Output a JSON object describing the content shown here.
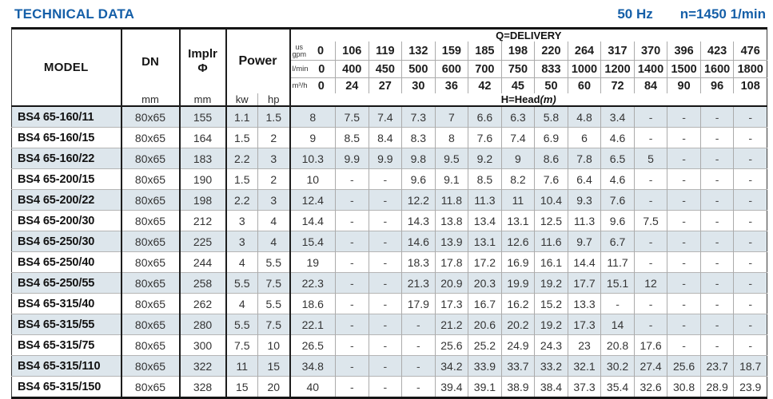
{
  "title": "TECHNICAL DATA",
  "frequency": "50 Hz",
  "speed": "n=1450 1/min",
  "colors": {
    "accent_blue": "#155fa8",
    "row_shade": "#dde6ec",
    "grid_thin": "#ababab",
    "grid_dark": "#1d1d1d"
  },
  "table": {
    "col_model": "MODEL",
    "col_dn": "DN",
    "col_implr_line1": "Implr",
    "col_implr_line2": "Φ",
    "col_power": "Power",
    "unit_mm": "mm",
    "unit_kw": "kw",
    "unit_hp": "hp",
    "q_delivery_label": "Q=DELIVERY",
    "h_head_label": "H=Head",
    "h_head_unit": "(m)",
    "flow_units": {
      "gpm_top": "us",
      "gpm_bottom": "gpm",
      "lmin": "l/min",
      "m3h": "m³/h"
    },
    "flow_values": {
      "gpm": [
        "0",
        "106",
        "119",
        "132",
        "159",
        "185",
        "198",
        "220",
        "264",
        "317",
        "370",
        "396",
        "423",
        "476"
      ],
      "lmin": [
        "0",
        "400",
        "450",
        "500",
        "600",
        "700",
        "750",
        "833",
        "1000",
        "1200",
        "1400",
        "1500",
        "1600",
        "1800"
      ],
      "m3h": [
        "0",
        "24",
        "27",
        "30",
        "36",
        "42",
        "45",
        "50",
        "60",
        "72",
        "84",
        "90",
        "96",
        "108"
      ]
    },
    "rows": [
      {
        "model": "BS4 65-160/11",
        "dn": "80x65",
        "implr": "155",
        "kw": "1.1",
        "hp": "1.5",
        "heads": [
          "8",
          "7.5",
          "7.4",
          "7.3",
          "7",
          "6.6",
          "6.3",
          "5.8",
          "4.8",
          "3.4",
          "-",
          "-",
          "-",
          "-"
        ]
      },
      {
        "model": "BS4 65-160/15",
        "dn": "80x65",
        "implr": "164",
        "kw": "1.5",
        "hp": "2",
        "heads": [
          "9",
          "8.5",
          "8.4",
          "8.3",
          "8",
          "7.6",
          "7.4",
          "6.9",
          "6",
          "4.6",
          "-",
          "-",
          "-",
          "-"
        ]
      },
      {
        "model": "BS4 65-160/22",
        "dn": "80x65",
        "implr": "183",
        "kw": "2.2",
        "hp": "3",
        "heads": [
          "10.3",
          "9.9",
          "9.9",
          "9.8",
          "9.5",
          "9.2",
          "9",
          "8.6",
          "7.8",
          "6.5",
          "5",
          "-",
          "-",
          "-"
        ]
      },
      {
        "model": "BS4 65-200/15",
        "dn": "80x65",
        "implr": "190",
        "kw": "1.5",
        "hp": "2",
        "heads": [
          "10",
          "-",
          "-",
          "9.6",
          "9.1",
          "8.5",
          "8.2",
          "7.6",
          "6.4",
          "4.6",
          "-",
          "-",
          "-",
          "-"
        ]
      },
      {
        "model": "BS4 65-200/22",
        "dn": "80x65",
        "implr": "198",
        "kw": "2.2",
        "hp": "3",
        "heads": [
          "12.4",
          "-",
          "-",
          "12.2",
          "11.8",
          "11.3",
          "11",
          "10.4",
          "9.3",
          "7.6",
          "-",
          "-",
          "-",
          "-"
        ]
      },
      {
        "model": "BS4 65-200/30",
        "dn": "80x65",
        "implr": "212",
        "kw": "3",
        "hp": "4",
        "heads": [
          "14.4",
          "-",
          "-",
          "14.3",
          "13.8",
          "13.4",
          "13.1",
          "12.5",
          "11.3",
          "9.6",
          "7.5",
          "-",
          "-",
          "-"
        ]
      },
      {
        "model": "BS4 65-250/30",
        "dn": "80x65",
        "implr": "225",
        "kw": "3",
        "hp": "4",
        "heads": [
          "15.4",
          "-",
          "-",
          "14.6",
          "13.9",
          "13.1",
          "12.6",
          "11.6",
          "9.7",
          "6.7",
          "-",
          "-",
          "-",
          "-"
        ]
      },
      {
        "model": "BS4 65-250/40",
        "dn": "80x65",
        "implr": "244",
        "kw": "4",
        "hp": "5.5",
        "heads": [
          "19",
          "-",
          "-",
          "18.3",
          "17.8",
          "17.2",
          "16.9",
          "16.1",
          "14.4",
          "11.7",
          "-",
          "-",
          "-",
          "-"
        ]
      },
      {
        "model": "BS4 65-250/55",
        "dn": "80x65",
        "implr": "258",
        "kw": "5.5",
        "hp": "7.5",
        "heads": [
          "22.3",
          "-",
          "-",
          "21.3",
          "20.9",
          "20.3",
          "19.9",
          "19.2",
          "17.7",
          "15.1",
          "12",
          "-",
          "-",
          "-"
        ]
      },
      {
        "model": "BS4 65-315/40",
        "dn": "80x65",
        "implr": "262",
        "kw": "4",
        "hp": "5.5",
        "heads": [
          "18.6",
          "-",
          "-",
          "17.9",
          "17.3",
          "16.7",
          "16.2",
          "15.2",
          "13.3",
          "-",
          "-",
          "-",
          "-",
          "-"
        ]
      },
      {
        "model": "BS4 65-315/55",
        "dn": "80x65",
        "implr": "280",
        "kw": "5.5",
        "hp": "7.5",
        "heads": [
          "22.1",
          "-",
          "-",
          "-",
          "21.2",
          "20.6",
          "20.2",
          "19.2",
          "17.3",
          "14",
          "-",
          "-",
          "-",
          "-"
        ]
      },
      {
        "model": "BS4 65-315/75",
        "dn": "80x65",
        "implr": "300",
        "kw": "7.5",
        "hp": "10",
        "heads": [
          "26.5",
          "-",
          "-",
          "-",
          "25.6",
          "25.2",
          "24.9",
          "24.3",
          "23",
          "20.8",
          "17.6",
          "-",
          "-",
          "-"
        ]
      },
      {
        "model": "BS4 65-315/110",
        "dn": "80x65",
        "implr": "322",
        "kw": "11",
        "hp": "15",
        "heads": [
          "34.8",
          "-",
          "-",
          "-",
          "34.2",
          "33.9",
          "33.7",
          "33.2",
          "32.1",
          "30.2",
          "27.4",
          "25.6",
          "23.7",
          "18.7"
        ]
      },
      {
        "model": "BS4 65-315/150",
        "dn": "80x65",
        "implr": "328",
        "kw": "15",
        "hp": "20",
        "heads": [
          "40",
          "-",
          "-",
          "-",
          "39.4",
          "39.1",
          "38.9",
          "38.4",
          "37.3",
          "35.4",
          "32.6",
          "30.8",
          "28.9",
          "23.9"
        ]
      }
    ]
  }
}
